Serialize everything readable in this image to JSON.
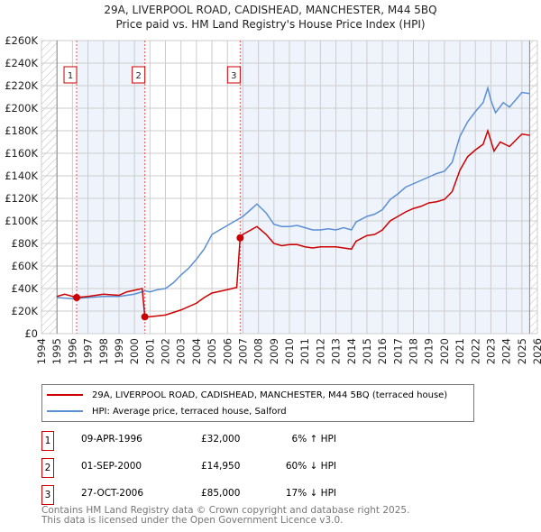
{
  "title": "29A, LIVERPOOL ROAD, CADISHEAD, MANCHESTER, M44 5BQ",
  "subtitle": "Price paid vs. HM Land Registry's House Price Index (HPI)",
  "chart_data": {
    "type": "line",
    "xlim": [
      1994,
      2026
    ],
    "ylim": [
      0,
      260000
    ],
    "x_ticks": [
      "1994",
      "1995",
      "1996",
      "1997",
      "1998",
      "1999",
      "2000",
      "2001",
      "2002",
      "2003",
      "2004",
      "2005",
      "2006",
      "2007",
      "2008",
      "2009",
      "2010",
      "2011",
      "2012",
      "2013",
      "2014",
      "2015",
      "2016",
      "2017",
      "2018",
      "2019",
      "2020",
      "2021",
      "2022",
      "2023",
      "2024",
      "2025",
      "2026"
    ],
    "y_ticks": [
      "£0",
      "£20K",
      "£40K",
      "£60K",
      "£80K",
      "£100K",
      "£120K",
      "£140K",
      "£160K",
      "£180K",
      "£200K",
      "£220K",
      "£240K",
      "£260K"
    ],
    "series": [
      {
        "name": "29A, LIVERPOOL ROAD, CADISHEAD, MANCHESTER, M44 5BQ (terraced house)",
        "color": "#cc0000",
        "x": [
          1995,
          1995.5,
          1996.27,
          1997,
          1998,
          1999,
          1999.5,
          2000.5,
          2000.67,
          2001,
          2002,
          2003,
          2004,
          2004.5,
          2005,
          2006,
          2006.6,
          2006.82,
          2007,
          2007.9,
          2008.5,
          2009,
          2009.5,
          2010,
          2010.5,
          2011,
          2011.5,
          2012,
          2013,
          2013.5,
          2014,
          2014.3,
          2015,
          2015.5,
          2016,
          2016.5,
          2017,
          2017.5,
          2018,
          2018.5,
          2019,
          2019.5,
          2020,
          2020.5,
          2021,
          2021.5,
          2022,
          2022.5,
          2022.8,
          2023.2,
          2023.6,
          2024.2,
          2024.7,
          2025,
          2025.5
        ],
        "y": [
          33,
          35,
          32,
          33,
          35,
          34,
          37,
          40,
          14.95,
          15,
          16.5,
          21,
          27,
          32,
          36,
          39,
          41,
          85,
          88,
          95,
          88,
          80,
          78,
          79,
          79,
          77,
          76,
          77,
          77,
          76,
          75,
          82,
          87,
          88,
          92,
          100,
          104,
          108,
          111,
          113,
          116,
          117,
          119,
          126,
          145,
          157,
          163,
          168,
          180,
          162,
          170,
          166,
          173,
          177,
          176
        ]
      },
      {
        "name": "HPI: Average price, terraced house, Salford",
        "color": "#5b8fd4",
        "x": [
          1995,
          1996,
          1997,
          1998,
          1999,
          2000,
          2000.7,
          2001,
          2001.5,
          2002,
          2002.5,
          2003,
          2003.5,
          2004,
          2004.5,
          2005,
          2005.5,
          2006,
          2006.5,
          2007,
          2007.5,
          2007.9,
          2008.5,
          2009,
          2009.5,
          2010,
          2010.5,
          2011,
          2011.5,
          2012,
          2012.5,
          2013,
          2013.5,
          2014,
          2014.3,
          2015,
          2015.5,
          2016,
          2016.5,
          2017,
          2017.5,
          2018,
          2018.5,
          2019,
          2019.5,
          2020,
          2020.5,
          2021,
          2021.5,
          2022,
          2022.5,
          2022.8,
          2023,
          2023.3,
          2023.8,
          2024.2,
          2024.7,
          2025,
          2025.5
        ],
        "y": [
          32,
          31,
          32,
          33,
          33,
          35,
          38,
          37,
          39,
          40,
          45,
          52,
          58,
          66,
          75,
          88,
          92,
          96,
          100,
          104,
          110,
          115,
          107,
          97,
          95,
          95,
          96,
          94,
          92,
          92,
          93,
          92,
          94,
          92,
          99,
          104,
          106,
          110,
          119,
          124,
          130,
          133,
          136,
          139,
          142,
          144,
          152,
          175,
          188,
          197,
          205,
          218,
          207,
          196,
          205,
          201,
          209,
          214,
          213
        ]
      }
    ],
    "y_unit": "£K",
    "sales": [
      {
        "n": "1",
        "date": "09-APR-1996",
        "price": "£32,000",
        "hpi": "6% ↑ HPI",
        "x": 1996.27,
        "y": 32
      },
      {
        "n": "2",
        "date": "01-SEP-2000",
        "price": "£14,950",
        "hpi": "60% ↓ HPI",
        "x": 2000.67,
        "y": 14.95
      },
      {
        "n": "3",
        "date": "27-OCT-2006",
        "price": "£85,000",
        "hpi": "17% ↓ HPI",
        "x": 2006.82,
        "y": 85
      }
    ],
    "data_end": 2025.5,
    "legend_position": "bottom"
  },
  "footer": [
    "Contains HM Land Registry data © Crown copyright and database right 2025.",
    "This data is licensed under the Open Government Licence v3.0."
  ]
}
